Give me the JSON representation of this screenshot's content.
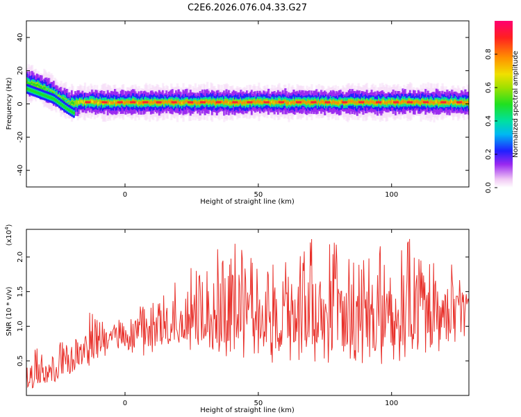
{
  "title": "C2E6.2026.076.04.33.G27",
  "top_panel": {
    "ylabel": "Frequency (Hz)",
    "xlabel": "Height of straight line (km)",
    "colorbar_label": "Normalized spectral amplitude"
  },
  "bottom_panel": {
    "ylabel": "SNR (10 * v/v)",
    "y_multiplier": "(x10",
    "y_multiplier_exp": "4",
    "y_multiplier_close": ")",
    "xlabel": "Height of straight line (km)"
  },
  "colors": {
    "snr_line": "#e8302a",
    "band_colors": [
      "#f2ddf8",
      "#c58de8",
      "#6a2bff",
      "#1b3cff",
      "#18c8f0",
      "#33e05a",
      "#f2d21c",
      "#e8302a"
    ]
  },
  "chart_data": [
    {
      "type": "heatmap",
      "title": "C2E6.2026.076.04.33.G27",
      "xlabel": "Height of straight line (km)",
      "ylabel": "Frequency (Hz)",
      "xlim": [
        -37,
        129
      ],
      "ylim": [
        -50,
        50
      ],
      "xticks": [
        0,
        50,
        100
      ],
      "yticks": [
        -40,
        -20,
        0,
        20,
        40
      ],
      "ridge": {
        "description": "dominant spectral ridge frequency vs height",
        "x": [
          -37,
          -33,
          -29,
          -25,
          -21,
          -17,
          -13,
          0,
          25,
          50,
          75,
          100,
          129
        ],
        "frequency_hz": [
          13,
          11,
          8,
          4,
          0,
          1,
          1,
          1,
          1,
          1,
          1,
          1,
          1
        ],
        "peak_amplitude": [
          0.6,
          0.6,
          0.55,
          0.5,
          0.55,
          0.75,
          0.85,
          0.9,
          0.9,
          0.9,
          0.9,
          0.9,
          0.9
        ]
      },
      "secondary_branch": {
        "x": [
          -37,
          -32,
          -27,
          -22,
          -19
        ],
        "frequency_hz": [
          9,
          6,
          3,
          -3,
          -6
        ]
      },
      "colorbar": {
        "label": "Normalized spectral amplitude",
        "range": [
          0.0,
          1.0
        ],
        "ticks": [
          0.0,
          0.2,
          0.4,
          0.6,
          0.8
        ]
      }
    },
    {
      "type": "line",
      "title": "",
      "xlabel": "Height of straight line (km)",
      "ylabel": "SNR (10 * v/v)",
      "xlim": [
        -37,
        129
      ],
      "ylim": [
        0,
        24000
      ],
      "xticks": [
        0,
        50,
        100
      ],
      "yticks": [
        0.5,
        1.0,
        1.5,
        2.0
      ],
      "ytick_scale": 10000,
      "series": [
        {
          "name": "SNR",
          "x": [
            -37,
            -33,
            -29,
            -25,
            -21,
            -17,
            -13,
            -9,
            -5,
            -1,
            3,
            7,
            11,
            15,
            19,
            23,
            27,
            31,
            35,
            39,
            43,
            47,
            51,
            55,
            59,
            63,
            67,
            71,
            75,
            79,
            83,
            87,
            91,
            95,
            99,
            103,
            107,
            111,
            115,
            119,
            123,
            127
          ],
          "envelope_high": [
            5500,
            7000,
            7500,
            8500,
            8000,
            9500,
            13500,
            12000,
            11500,
            12500,
            13000,
            13000,
            14000,
            15500,
            17000,
            19000,
            18500,
            20000,
            21500,
            22500,
            22000,
            20500,
            20000,
            19500,
            21000,
            21500,
            21500,
            23500,
            22500,
            22000,
            22500,
            21500,
            22000,
            21500,
            22500,
            23500,
            23500,
            20500,
            20000,
            20000,
            19000,
            17500
          ],
          "envelope_low": [
            500,
            1000,
            1500,
            2000,
            2500,
            3000,
            4500,
            5500,
            6000,
            6500,
            6000,
            5500,
            6000,
            7000,
            6500,
            6500,
            5500,
            6500,
            5000,
            5500,
            5500,
            5000,
            5000,
            4500,
            4500,
            5000,
            4500,
            4000,
            3500,
            4000,
            4000,
            3500,
            4500,
            4500,
            4000,
            5000,
            5000,
            5500,
            6000,
            5500,
            7500,
            8500
          ],
          "mean": [
            2500,
            3000,
            3500,
            4000,
            4500,
            5500,
            7500,
            8000,
            8500,
            9000,
            9000,
            9000,
            9500,
            10500,
            11000,
            11500,
            11000,
            12000,
            12000,
            12500,
            12500,
            12000,
            11500,
            11500,
            12000,
            12500,
            12000,
            12500,
            12000,
            12500,
            12500,
            12000,
            12500,
            12500,
            12500,
            13000,
            13000,
            12500,
            12500,
            12500,
            13000,
            13000
          ]
        }
      ]
    }
  ]
}
